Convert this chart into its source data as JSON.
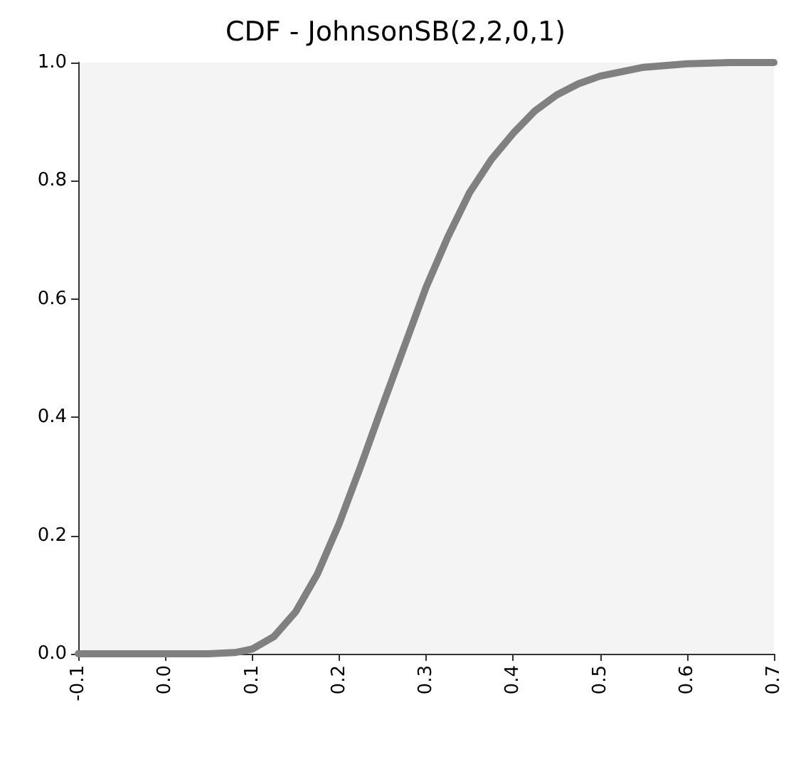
{
  "chart_data": {
    "type": "line",
    "title": "CDF - JohnsonSB(2,2,0,1)",
    "x": [
      -0.1,
      0,
      0.05,
      0.08,
      0.1,
      0.125,
      0.15,
      0.175,
      0.2,
      0.225,
      0.25,
      0.275,
      0.3,
      0.325,
      0.35,
      0.375,
      0.4,
      0.425,
      0.45,
      0.475,
      0.5,
      0.55,
      0.6,
      0.65,
      0.7
    ],
    "series": [
      {
        "color": "#808080",
        "values": [
          0,
          0,
          0,
          0.002,
          0.008,
          0.029,
          0.071,
          0.135,
          0.22,
          0.318,
          0.42,
          0.52,
          0.62,
          0.705,
          0.78,
          0.836,
          0.88,
          0.918,
          0.945,
          0.964,
          0.977,
          0.992,
          0.998,
          1,
          1
        ]
      }
    ],
    "xlim": [
      -0.1,
      0.7
    ],
    "ylim": [
      0,
      1
    ],
    "xticks": [
      -0.1,
      {
        "value": 0,
        "label": "0.0"
      },
      0.1,
      0.2,
      0.3,
      0.4,
      0.5,
      0.6,
      0.7
    ],
    "yticks": [
      {
        "value": 0,
        "label": "0.0"
      },
      0.2,
      0.4,
      0.6,
      0.8,
      {
        "value": 1,
        "label": "1.0"
      }
    ],
    "grid": false,
    "marker": "none",
    "line_style": "solid"
  }
}
